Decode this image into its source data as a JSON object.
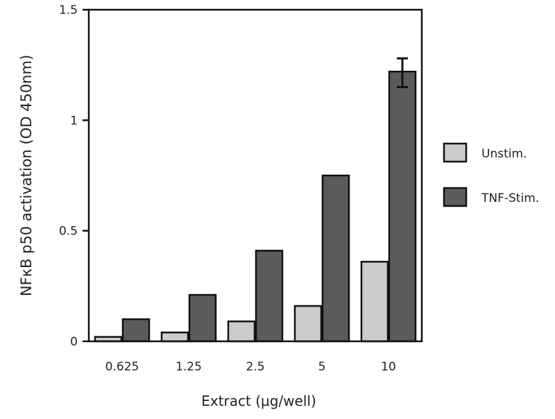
{
  "chart_data": {
    "type": "bar",
    "title": "",
    "xlabel": "Extract (µg/well)",
    "ylabel": "NFκB p50 activation (OD 450nm)",
    "categories": [
      "0.625",
      "1.25",
      "2.5",
      "5",
      "10"
    ],
    "series": [
      {
        "name": "Unstim.",
        "color": "#cccccc",
        "values": [
          0.02,
          0.04,
          0.09,
          0.16,
          0.36
        ]
      },
      {
        "name": "TNF-Stim.",
        "color": "#5b5b5e",
        "values": [
          0.1,
          0.21,
          0.41,
          0.75,
          1.22
        ]
      }
    ],
    "error_bars": [
      {
        "series": "TNF-Stim.",
        "category": "10",
        "low": 1.15,
        "high": 1.28
      }
    ],
    "ylim": [
      0,
      1.5
    ],
    "yticks": [
      "0",
      "0.5",
      "1",
      "1.5"
    ],
    "grid": false,
    "legend_position": "right"
  }
}
